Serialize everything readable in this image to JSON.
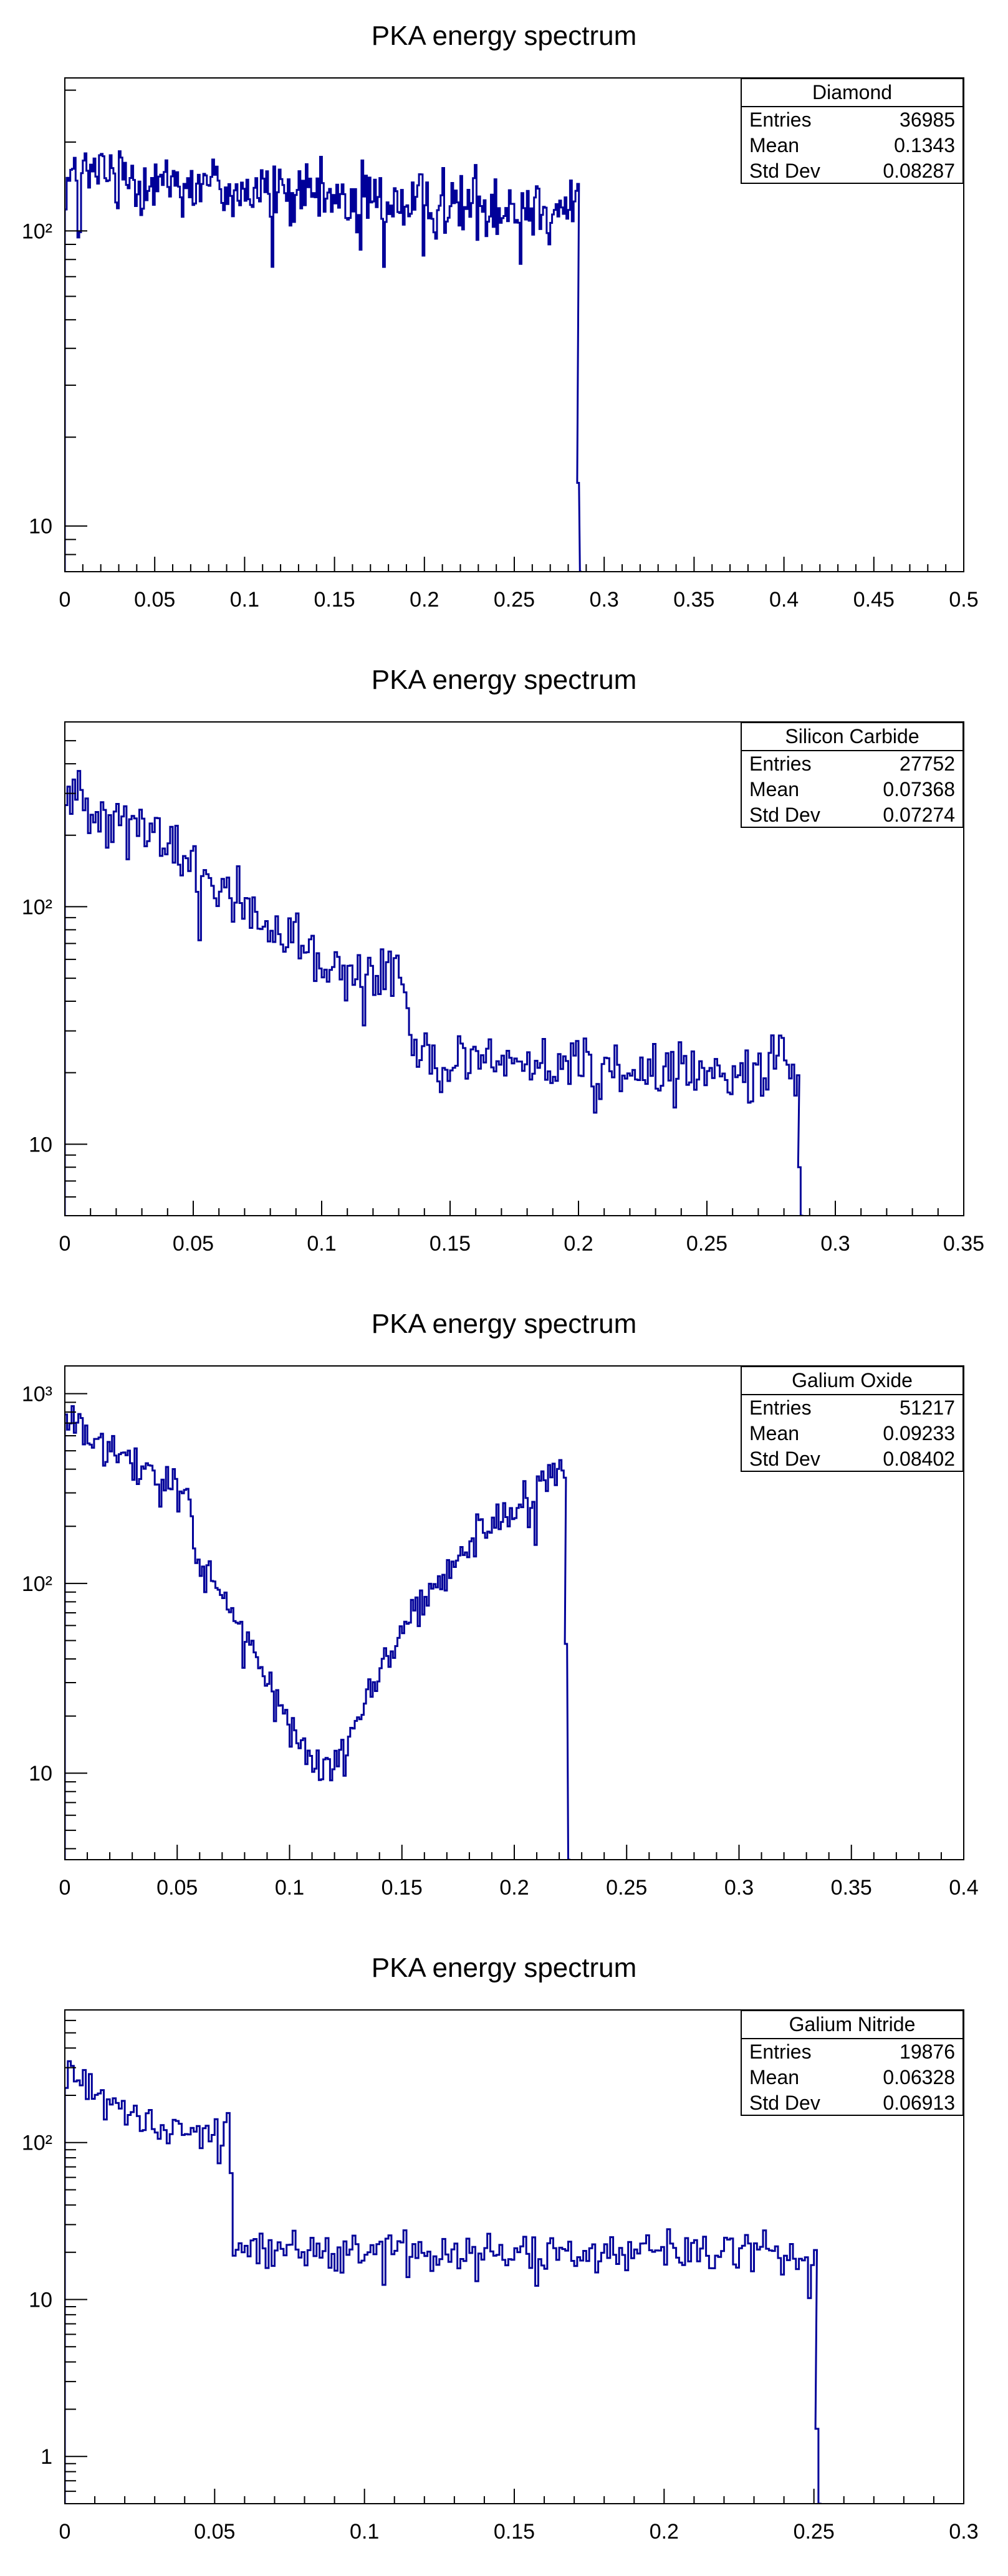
{
  "colors": {
    "line": "#000099",
    "axis": "#000000",
    "background": "#ffffff"
  },
  "chart_data": [
    {
      "type": "step-histogram",
      "title": "PKA energy spectrum",
      "xlabel": "",
      "ylabel": "",
      "yscale": "log",
      "xlim": [
        0,
        0.5
      ],
      "ylim": [
        7,
        330
      ],
      "xticks": [
        0,
        0.05,
        0.1,
        0.15,
        0.2,
        0.25,
        0.3,
        0.35,
        0.4,
        0.45,
        0.5
      ],
      "xtick_labels": [
        "0",
        "0.05",
        "0.1",
        "0.15",
        "0.2",
        "0.25",
        "0.3",
        "0.35",
        "0.4",
        "0.45",
        "0.5"
      ],
      "ytick_labels": [
        {
          "value": 10,
          "text": "10"
        },
        {
          "value": 100,
          "text": "10²"
        }
      ],
      "stats": {
        "name": "Diamond",
        "entries_label": "Entries",
        "entries": "36985",
        "mean_label": "Mean",
        "mean": "0.1343",
        "stddev_label": "Std Dev",
        "stddev": "0.08287"
      },
      "anchors": [
        [
          0,
          150
        ],
        [
          0.02,
          158
        ],
        [
          0.05,
          150
        ],
        [
          0.08,
          143
        ],
        [
          0.1,
          137
        ],
        [
          0.12,
          133
        ],
        [
          0.15,
          128
        ],
        [
          0.2,
          125
        ],
        [
          0.25,
          122
        ],
        [
          0.285,
          120
        ]
      ],
      "noise": 0.13,
      "tail": [
        [
          0.286,
          14
        ],
        [
          0.2875,
          0.5
        ]
      ],
      "bin_width": 0.001,
      "x_end": 0.2855
    },
    {
      "type": "step-histogram",
      "title": "PKA energy spectrum",
      "xlabel": "",
      "ylabel": "",
      "yscale": "log",
      "xlim": [
        0,
        0.35
      ],
      "ylim": [
        5,
        600
      ],
      "xticks": [
        0,
        0.05,
        0.1,
        0.15,
        0.2,
        0.25,
        0.3,
        0.35
      ],
      "xtick_labels": [
        "0",
        "0.05",
        "0.1",
        "0.15",
        "0.2",
        "0.25",
        "0.3",
        "0.35"
      ],
      "ytick_labels": [
        {
          "value": 10,
          "text": "10"
        },
        {
          "value": 100,
          "text": "10²"
        }
      ],
      "stats": {
        "name": "Silicon Carbide",
        "entries_label": "Entries",
        "entries": "27752",
        "mean_label": "Mean",
        "mean": "0.07368",
        "stddev_label": "Std Dev",
        "stddev": "0.07274"
      },
      "anchors": [
        [
          0,
          300
        ],
        [
          0.02,
          245
        ],
        [
          0.04,
          180
        ],
        [
          0.06,
          120
        ],
        [
          0.08,
          85
        ],
        [
          0.095,
          58
        ],
        [
          0.11,
          50
        ],
        [
          0.125,
          50
        ],
        [
          0.134,
          55
        ],
        [
          0.1345,
          23
        ],
        [
          0.15,
          23
        ],
        [
          0.2,
          21
        ],
        [
          0.25,
          20
        ],
        [
          0.285,
          20
        ]
      ],
      "noise": 0.15,
      "tail": [
        [
          0.2865,
          8
        ],
        [
          0.2875,
          1
        ]
      ],
      "bin_width": 0.001,
      "x_end": 0.2855
    },
    {
      "type": "step-histogram",
      "title": "PKA energy spectrum",
      "xlabel": "",
      "ylabel": "",
      "yscale": "log",
      "xlim": [
        0,
        0.4
      ],
      "ylim": [
        3.5,
        1400
      ],
      "xticks": [
        0,
        0.05,
        0.1,
        0.15,
        0.2,
        0.25,
        0.3,
        0.35,
        0.4
      ],
      "xtick_labels": [
        "0",
        "0.05",
        "0.1",
        "0.15",
        "0.2",
        "0.25",
        "0.3",
        "0.35",
        "0.4"
      ],
      "ytick_labels": [
        {
          "value": 10,
          "text": "10"
        },
        {
          "value": 100,
          "text": "10²"
        },
        {
          "value": 1000,
          "text": "10³"
        }
      ],
      "stats": {
        "name": "Galium Oxide",
        "entries_label": "Entries",
        "entries": "51217",
        "mean_label": "Mean",
        "mean": "0.09233",
        "stddev_label": "Std Dev",
        "stddev": "0.08402"
      },
      "anchors": [
        [
          0,
          750
        ],
        [
          0.02,
          480
        ],
        [
          0.04,
          360
        ],
        [
          0.055,
          310
        ],
        [
          0.058,
          150
        ],
        [
          0.07,
          90
        ],
        [
          0.085,
          45
        ],
        [
          0.1,
          18
        ],
        [
          0.115,
          10
        ],
        [
          0.125,
          14
        ],
        [
          0.14,
          35
        ],
        [
          0.16,
          80
        ],
        [
          0.18,
          160
        ],
        [
          0.2,
          260
        ],
        [
          0.222,
          380
        ]
      ],
      "noise": 0.12,
      "tail": [
        [
          0.2235,
          48
        ],
        [
          0.225,
          0.5
        ]
      ],
      "bin_width": 0.001,
      "x_end": 0.2225
    },
    {
      "type": "step-histogram",
      "title": "PKA energy spectrum",
      "xlabel": "",
      "ylabel": "",
      "yscale": "log",
      "xlim": [
        0,
        0.3
      ],
      "ylim": [
        0.5,
        700
      ],
      "xticks": [
        0,
        0.05,
        0.1,
        0.15,
        0.2,
        0.25,
        0.3
      ],
      "xtick_labels": [
        "0",
        "0.05",
        "0.1",
        "0.15",
        "0.2",
        "0.25",
        "0.3"
      ],
      "ytick_labels": [
        {
          "value": 1,
          "text": "1"
        },
        {
          "value": 10,
          "text": "10"
        },
        {
          "value": 100,
          "text": "10²"
        }
      ],
      "stats": {
        "name": "Galium Nitride",
        "entries_label": "Entries",
        "entries": "19876",
        "mean_label": "Mean",
        "mean": "0.06328",
        "stddev_label": "Std Dev",
        "stddev": "0.06913"
      },
      "anchors": [
        [
          0,
          330
        ],
        [
          0.01,
          220
        ],
        [
          0.02,
          170
        ],
        [
          0.03,
          135
        ],
        [
          0.04,
          118
        ],
        [
          0.05,
          112
        ],
        [
          0.055,
          120
        ],
        [
          0.0565,
          22
        ],
        [
          0.1,
          21
        ],
        [
          0.15,
          20
        ],
        [
          0.2,
          20
        ],
        [
          0.25,
          20
        ]
      ],
      "noise": 0.14,
      "tail": [
        [
          0.2515,
          1.5
        ],
        [
          0.2525,
          0.3
        ]
      ],
      "bin_width": 0.001,
      "x_end": 0.2505
    }
  ]
}
